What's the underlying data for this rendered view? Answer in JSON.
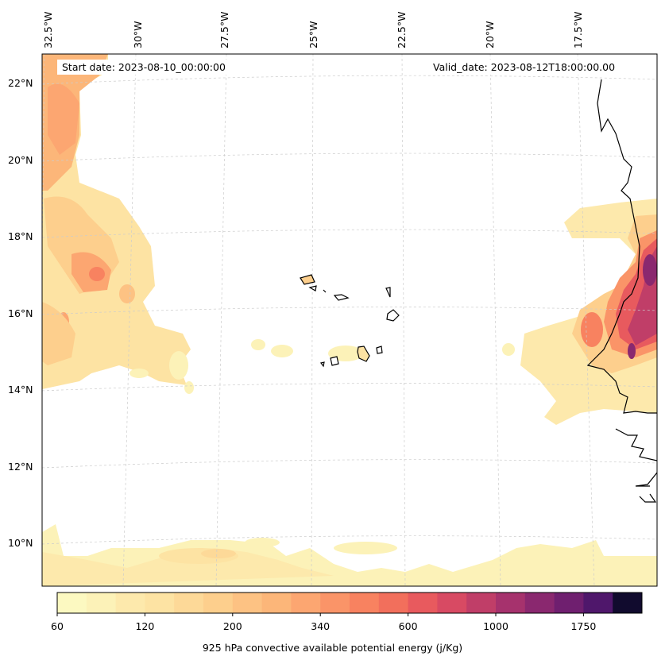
{
  "map": {
    "start_date": "Start date: 2023-08-10_00:00:00",
    "valid_date": "Valid_date: 2023-08-12T18:00:00.00",
    "variable": "925 hPa convective available potential energy (j/Kg)",
    "longitude_labels": [
      "32.5°W",
      "30°W",
      "27.5°W",
      "25°W",
      "22.5°W",
      "20°W",
      "17.5°W"
    ],
    "latitude_labels": [
      "22°N",
      "20°N",
      "18°N",
      "16°N",
      "14°N",
      "12°N",
      "10°N"
    ],
    "extent": {
      "lon_min": -33.0,
      "lon_max": -15.6,
      "lat_min": 8.8,
      "lat_max": 22.8
    },
    "features": [
      "coastline of West Africa (Mauritania, Senegal, Gambia, Guinea-Bissau)",
      "Cape Verde islands"
    ]
  },
  "colorbar": {
    "levels": [
      60,
      80,
      100,
      120,
      140,
      160,
      200,
      240,
      280,
      340,
      400,
      500,
      600,
      700,
      850,
      1000,
      1250,
      1500,
      1750,
      2000,
      2300
    ],
    "tick_labels": [
      "60",
      "120",
      "200",
      "340",
      "600",
      "1000",
      "1750"
    ],
    "colors": [
      "#fcf9c1",
      "#fcf2b8",
      "#fde9ac",
      "#fde3a3",
      "#fdd998",
      "#fdcf8d",
      "#fdc283",
      "#fcb679",
      "#fca671",
      "#fa9468",
      "#f88260",
      "#f26f5c",
      "#e85a5e",
      "#d84a63",
      "#c03e68",
      "#a6326d",
      "#8a286f",
      "#6f1f6f",
      "#4f176b",
      "#110b2e"
    ]
  }
}
